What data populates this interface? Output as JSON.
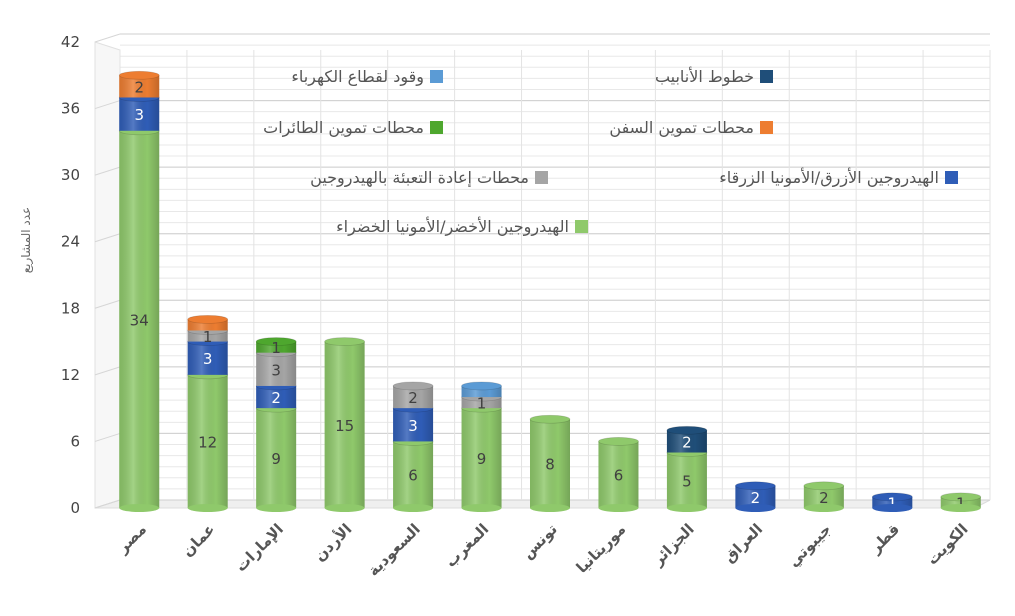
{
  "chart_data": {
    "type": "bar",
    "stacked": true,
    "title": "",
    "xlabel": "",
    "ylabel": "عدد المشاريع",
    "ylim": [
      0,
      42
    ],
    "yticks": [
      0,
      6,
      12,
      18,
      24,
      30,
      36,
      42
    ],
    "grid": true,
    "legend_position": "top-right",
    "categories": [
      "مصر",
      "عمان",
      "الإمارات",
      "الأردن",
      "السعودية",
      "المغرب",
      "تونس",
      "موريتانيا",
      "الجزائر",
      "العراق",
      "جيبوتي",
      "قطر",
      "الكويت"
    ],
    "series": [
      {
        "name": "الهيدروجين الأخضر/الأمونيا الخضراء",
        "color": "#8fc96b",
        "values": [
          34,
          12,
          9,
          15,
          6,
          9,
          8,
          6,
          5,
          0,
          2,
          0,
          1
        ]
      },
      {
        "name": "الهيدروجين الأزرق/الأمونيا الزرقاء",
        "color": "#2f5db7",
        "values": [
          3,
          3,
          2,
          0,
          3,
          0,
          0,
          0,
          0,
          2,
          0,
          1,
          0
        ]
      },
      {
        "name": "محطات إعادة التعبئة بالهيدروجين",
        "color": "#a5a5a5",
        "values": [
          0,
          1,
          3,
          0,
          2,
          1,
          0,
          0,
          0,
          0,
          0,
          0,
          0
        ]
      },
      {
        "name": "محطات تموين الطائرات",
        "color": "#4ea72e",
        "values": [
          0,
          0,
          1,
          0,
          0,
          0,
          0,
          0,
          0,
          0,
          0,
          0,
          0
        ]
      },
      {
        "name": "محطات تموين السفن",
        "color": "#ed7d31",
        "values": [
          2,
          1,
          0,
          0,
          0,
          0,
          0,
          0,
          0,
          0,
          0,
          0,
          0
        ]
      },
      {
        "name": "وقود لقطاع الكهرباء",
        "color": "#5b9bd5",
        "values": [
          0,
          0,
          0,
          0,
          0,
          1,
          0,
          0,
          0,
          0,
          0,
          0,
          0
        ]
      },
      {
        "name": "خطوط الأنابيب",
        "color": "#1f4e79",
        "values": [
          0,
          0,
          0,
          0,
          0,
          0,
          0,
          0,
          2,
          0,
          0,
          0,
          0
        ]
      }
    ],
    "data_labels": [
      {
        "category": "مصر",
        "labels": [
          "34",
          "3",
          "2"
        ]
      },
      {
        "category": "عمان",
        "labels": [
          "12",
          "3",
          "1"
        ]
      },
      {
        "category": "الإمارات",
        "labels": [
          "9",
          "2",
          "3",
          "1"
        ]
      },
      {
        "category": "الأردن",
        "labels": [
          "15"
        ]
      },
      {
        "category": "السعودية",
        "labels": [
          "6",
          "3",
          "2"
        ]
      },
      {
        "category": "المغرب",
        "labels": [
          "9",
          "1"
        ]
      },
      {
        "category": "تونس",
        "labels": [
          "8"
        ]
      },
      {
        "category": "موريتانيا",
        "labels": [
          "6"
        ]
      },
      {
        "category": "الجزائر",
        "labels": [
          "5",
          "2"
        ]
      },
      {
        "category": "العراق",
        "labels": [
          "2"
        ]
      },
      {
        "category": "جيبوتي",
        "labels": [
          "2"
        ]
      },
      {
        "category": "قطر",
        "labels": [
          "1"
        ]
      },
      {
        "category": "الكويت",
        "labels": [
          "1"
        ]
      }
    ],
    "legend_order": [
      6,
      5,
      4,
      3,
      1,
      2,
      0
    ]
  }
}
